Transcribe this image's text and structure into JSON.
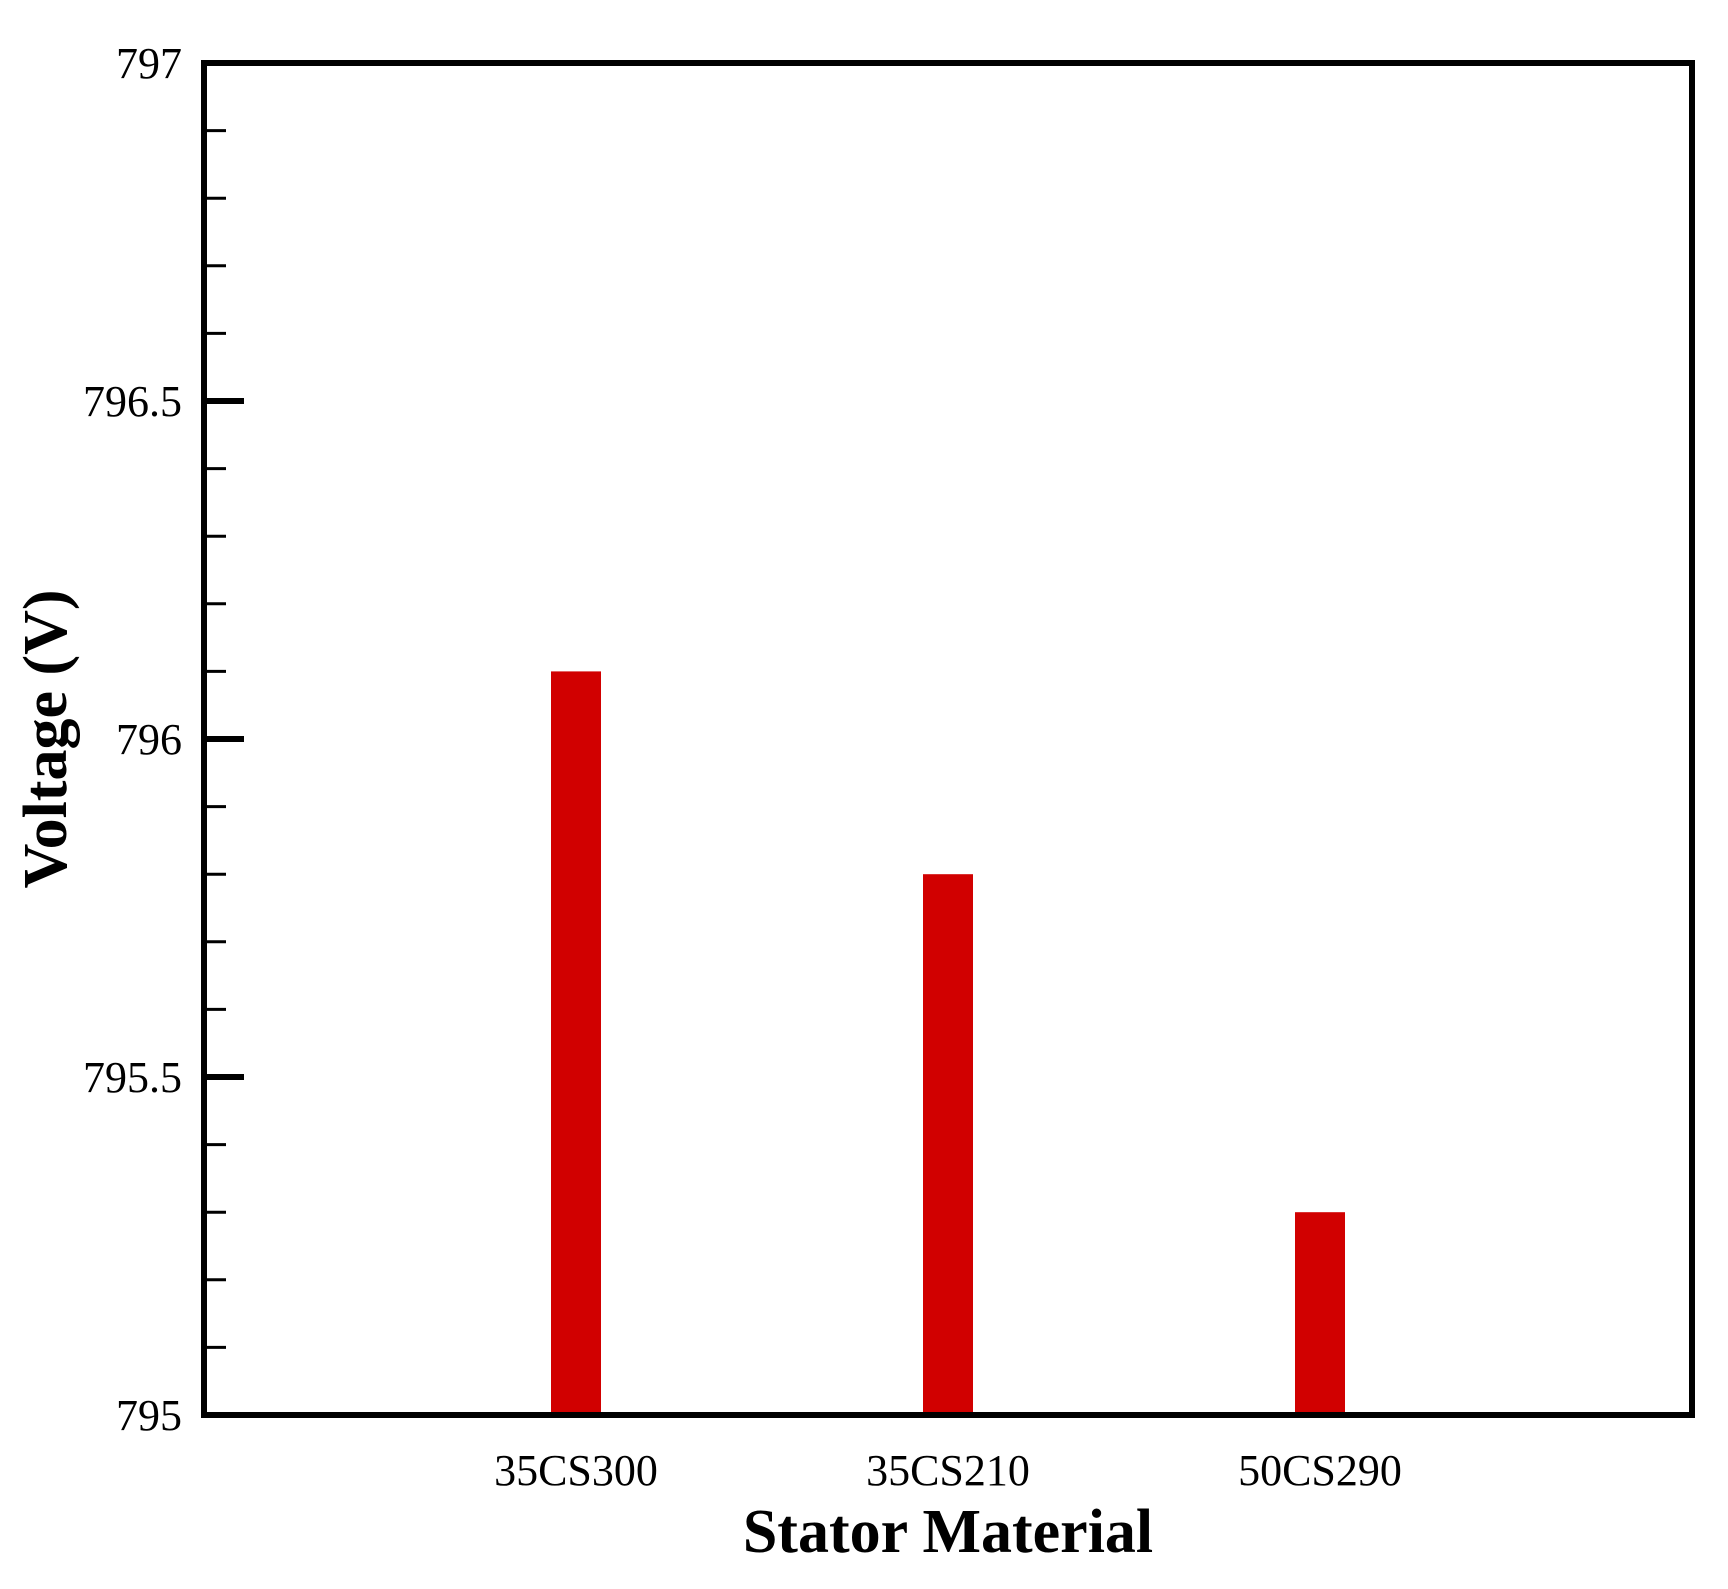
{
  "chart_data": {
    "type": "bar",
    "title": "",
    "xlabel": "Stator Material",
    "ylabel": "Voltage (V)",
    "categories": [
      "35CS300",
      "35CS210",
      "50CS290"
    ],
    "values": [
      796.1,
      795.8,
      795.3
    ],
    "ylim": [
      795,
      797
    ],
    "x_range": [
      0,
      4
    ],
    "y_major_ticks": [
      795,
      795.5,
      796,
      796.5,
      797
    ],
    "y_tick_labels": [
      "795",
      "795.5",
      "796",
      "796.5",
      "797"
    ],
    "y_minor_step": 0.1,
    "grid": false,
    "legend": "none",
    "colors": {
      "bar": "#d10000",
      "axis": "#000000",
      "background": "#ffffff"
    }
  }
}
